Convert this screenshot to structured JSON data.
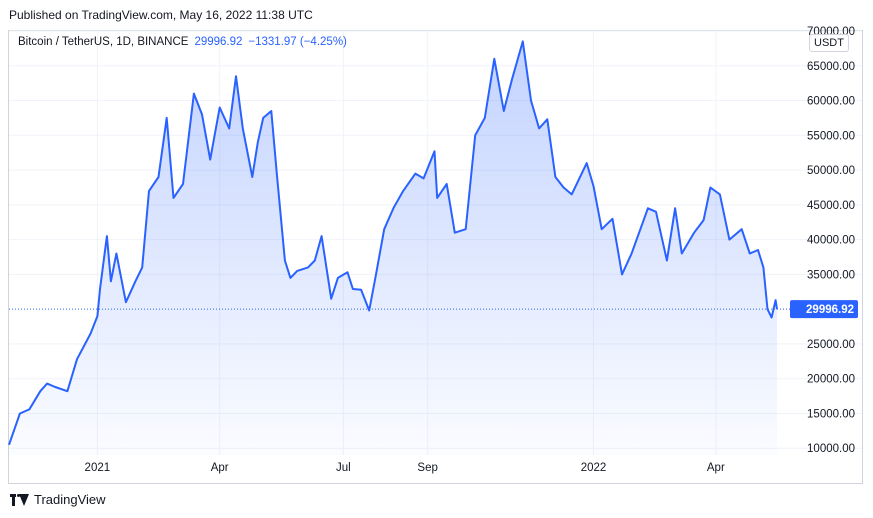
{
  "published": "Published on TradingView.com, May 16, 2022 11:38 UTC",
  "legend": {
    "symbol": "Bitcoin / TetherUS, 1D, BINANCE",
    "price": "29996.92",
    "change": "−1331.97 (−4.25%)"
  },
  "currency_label": "USDT",
  "last_price_label": "29996.92",
  "footer": {
    "brand": "TradingView",
    "logo_icon": "tradingview-logo-icon"
  },
  "colors": {
    "line": "#2962ff",
    "price_tag": "#2962ff",
    "grid": "#f0f3fa"
  },
  "chart_data": {
    "type": "area",
    "title": "",
    "xlabel": "",
    "ylabel": "",
    "ylim": [
      5000,
      70000
    ],
    "x_ticks": [
      {
        "date": "2021-01-01",
        "label": "2021"
      },
      {
        "date": "2021-04-01",
        "label": "Apr"
      },
      {
        "date": "2021-07-01",
        "label": "Jul"
      },
      {
        "date": "2021-09-01",
        "label": "Sep"
      },
      {
        "date": "2022-01-01",
        "label": "2022"
      },
      {
        "date": "2022-04-01",
        "label": "Apr"
      }
    ],
    "y_ticks": [
      10000,
      15000,
      20000,
      25000,
      35000,
      40000,
      45000,
      50000,
      55000,
      60000,
      65000,
      70000
    ],
    "y_tick_labels": [
      "10000.00",
      "15000.00",
      "20000.00",
      "25000.00",
      "35000.00",
      "40000.00",
      "45000.00",
      "50000.00",
      "55000.00",
      "60000.00",
      "65000.00",
      "70000.00"
    ],
    "last_value": 29996.92,
    "grid": true,
    "series": [
      {
        "points": [
          [
            "2020-10-28",
            10500
          ],
          [
            "2020-11-05",
            15000
          ],
          [
            "2020-11-12",
            15600
          ],
          [
            "2020-11-20",
            18200
          ],
          [
            "2020-11-25",
            19300
          ],
          [
            "2020-12-01",
            18800
          ],
          [
            "2020-12-10",
            18200
          ],
          [
            "2020-12-17",
            22800
          ],
          [
            "2020-12-27",
            26500
          ],
          [
            "2021-01-01",
            29000
          ],
          [
            "2021-01-03",
            33000
          ],
          [
            "2021-01-08",
            40500
          ],
          [
            "2021-01-11",
            34000
          ],
          [
            "2021-01-15",
            38000
          ],
          [
            "2021-01-22",
            31000
          ],
          [
            "2021-01-29",
            34000
          ],
          [
            "2021-02-03",
            36000
          ],
          [
            "2021-02-08",
            47000
          ],
          [
            "2021-02-15",
            49000
          ],
          [
            "2021-02-21",
            57500
          ],
          [
            "2021-02-26",
            46000
          ],
          [
            "2021-03-05",
            48000
          ],
          [
            "2021-03-13",
            61000
          ],
          [
            "2021-03-19",
            58000
          ],
          [
            "2021-03-25",
            51500
          ],
          [
            "2021-04-01",
            59000
          ],
          [
            "2021-04-08",
            56000
          ],
          [
            "2021-04-13",
            63500
          ],
          [
            "2021-04-18",
            56000
          ],
          [
            "2021-04-25",
            49000
          ],
          [
            "2021-04-29",
            54000
          ],
          [
            "2021-05-03",
            57500
          ],
          [
            "2021-05-09",
            58500
          ],
          [
            "2021-05-13",
            49500
          ],
          [
            "2021-05-19",
            37000
          ],
          [
            "2021-05-23",
            34500
          ],
          [
            "2021-05-28",
            35500
          ],
          [
            "2021-06-05",
            36000
          ],
          [
            "2021-06-10",
            37000
          ],
          [
            "2021-06-15",
            40500
          ],
          [
            "2021-06-22",
            31500
          ],
          [
            "2021-06-27",
            34500
          ],
          [
            "2021-07-04",
            35300
          ],
          [
            "2021-07-08",
            32900
          ],
          [
            "2021-07-14",
            32800
          ],
          [
            "2021-07-20",
            29800
          ],
          [
            "2021-07-25",
            35000
          ],
          [
            "2021-07-31",
            41500
          ],
          [
            "2021-08-07",
            44600
          ],
          [
            "2021-08-14",
            47000
          ],
          [
            "2021-08-23",
            49500
          ],
          [
            "2021-08-29",
            48800
          ],
          [
            "2021-09-06",
            52700
          ],
          [
            "2021-09-08",
            46000
          ],
          [
            "2021-09-15",
            48000
          ],
          [
            "2021-09-21",
            41000
          ],
          [
            "2021-09-29",
            41500
          ],
          [
            "2021-10-06",
            55000
          ],
          [
            "2021-10-13",
            57500
          ],
          [
            "2021-10-20",
            66000
          ],
          [
            "2021-10-27",
            58500
          ],
          [
            "2021-11-02",
            63000
          ],
          [
            "2021-11-10",
            68500
          ],
          [
            "2021-11-16",
            60000
          ],
          [
            "2021-11-22",
            56000
          ],
          [
            "2021-11-28",
            57300
          ],
          [
            "2021-12-04",
            49000
          ],
          [
            "2021-12-10",
            47500
          ],
          [
            "2021-12-16",
            46500
          ],
          [
            "2021-12-27",
            51000
          ],
          [
            "2022-01-01",
            47700
          ],
          [
            "2022-01-07",
            41500
          ],
          [
            "2022-01-15",
            43000
          ],
          [
            "2022-01-22",
            35000
          ],
          [
            "2022-01-29",
            38000
          ],
          [
            "2022-02-10",
            44500
          ],
          [
            "2022-02-16",
            44000
          ],
          [
            "2022-02-24",
            37000
          ],
          [
            "2022-03-02",
            44500
          ],
          [
            "2022-03-07",
            38000
          ],
          [
            "2022-03-16",
            41000
          ],
          [
            "2022-03-23",
            42800
          ],
          [
            "2022-03-28",
            47500
          ],
          [
            "2022-04-04",
            46500
          ],
          [
            "2022-04-11",
            40000
          ],
          [
            "2022-04-20",
            41500
          ],
          [
            "2022-04-26",
            38000
          ],
          [
            "2022-05-02",
            38500
          ],
          [
            "2022-05-06",
            36000
          ],
          [
            "2022-05-09",
            30000
          ],
          [
            "2022-05-12",
            28800
          ],
          [
            "2022-05-15",
            31300
          ],
          [
            "2022-05-16",
            29996.92
          ]
        ]
      }
    ]
  }
}
